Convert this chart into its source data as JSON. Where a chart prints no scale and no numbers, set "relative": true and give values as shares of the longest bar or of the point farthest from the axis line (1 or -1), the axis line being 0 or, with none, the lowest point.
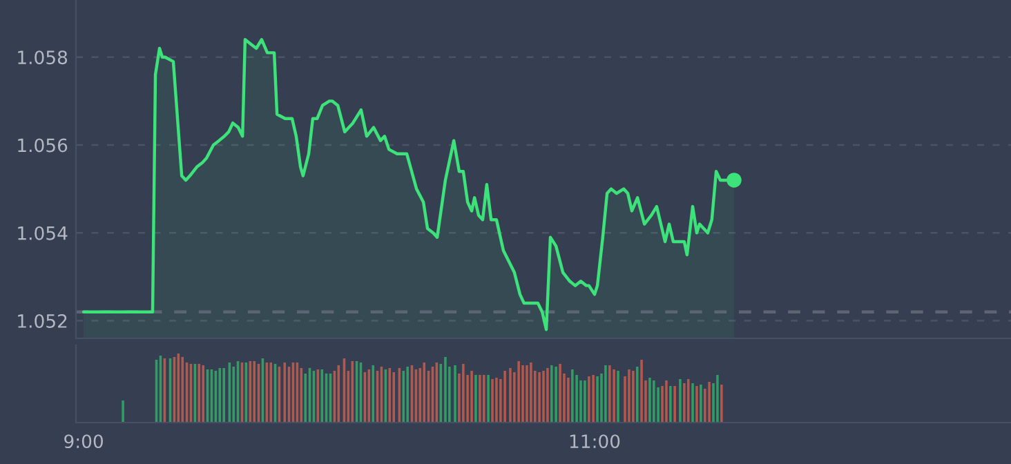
{
  "chart_data": [
    {
      "type": "area",
      "xlim": [
        8.97,
        12.63
      ],
      "ylim": [
        1.0516,
        1.0593
      ],
      "yticks": [
        1.052,
        1.054,
        1.056,
        1.058
      ],
      "grid": "y",
      "tick_labels": "y",
      "ref_lines": [
        {
          "axis": "y",
          "value": 1.0522,
          "color": "#5d6574",
          "line_style": "dashed"
        }
      ],
      "series": [
        {
          "type": "area",
          "color": "#3ee27a",
          "x": [
            9.0,
            9.27,
            9.281,
            9.297,
            9.308,
            9.319,
            9.351,
            9.384,
            9.4,
            9.416,
            9.443,
            9.465,
            9.481,
            9.508,
            9.53,
            9.551,
            9.568,
            9.584,
            9.605,
            9.622,
            9.632,
            9.654,
            9.676,
            9.697,
            9.719,
            9.746,
            9.757,
            9.789,
            9.816,
            9.832,
            9.849,
            9.859,
            9.881,
            9.897,
            9.914,
            9.935,
            9.962,
            9.973,
            9.995,
            10.022,
            10.054,
            10.086,
            10.108,
            10.135,
            10.162,
            10.178,
            10.195,
            10.227,
            10.265,
            10.303,
            10.33,
            10.346,
            10.368,
            10.384,
            10.416,
            10.449,
            10.47,
            10.486,
            10.503,
            10.519,
            10.53,
            10.546,
            10.562,
            10.578,
            10.595,
            10.616,
            10.643,
            10.686,
            10.708,
            10.724,
            10.762,
            10.778,
            10.795,
            10.811,
            10.827,
            10.849,
            10.876,
            10.903,
            10.924,
            10.946,
            10.968,
            10.978,
            11.0,
            11.011,
            11.032,
            11.049,
            11.065,
            11.086,
            11.114,
            11.13,
            11.146,
            11.168,
            11.195,
            11.222,
            11.243,
            11.276,
            11.292,
            11.308,
            11.33,
            11.351,
            11.362,
            11.384,
            11.4,
            11.411,
            11.443,
            11.459,
            11.476,
            11.492,
            11.546
          ],
          "values": [
            1.0522,
            1.0522,
            1.0576,
            1.0582,
            1.058,
            1.058,
            1.0579,
            1.0553,
            1.0552,
            1.0553,
            1.0555,
            1.0556,
            1.0557,
            1.056,
            1.0561,
            1.0562,
            1.0563,
            1.0565,
            1.0564,
            1.0562,
            1.0584,
            1.0583,
            1.0582,
            1.0584,
            1.0581,
            1.0581,
            1.0567,
            1.0566,
            1.0566,
            1.0562,
            1.0555,
            1.0553,
            1.0558,
            1.0566,
            1.0566,
            1.0569,
            1.057,
            1.057,
            1.0569,
            1.0563,
            1.0565,
            1.0568,
            1.0562,
            1.0564,
            1.0561,
            1.0562,
            1.0559,
            1.0558,
            1.0558,
            1.055,
            1.0547,
            1.0541,
            1.054,
            1.0539,
            1.0552,
            1.0561,
            1.0554,
            1.0554,
            1.0547,
            1.0545,
            1.0548,
            1.0544,
            1.0543,
            1.0551,
            1.0543,
            1.0543,
            1.0536,
            1.0531,
            1.0526,
            1.0524,
            1.0524,
            1.0524,
            1.0522,
            1.0518,
            1.0539,
            1.0537,
            1.0531,
            1.0529,
            1.0528,
            1.0529,
            1.0528,
            1.0528,
            1.0526,
            1.0528,
            1.0539,
            1.0549,
            1.055,
            1.0549,
            1.055,
            1.0549,
            1.0545,
            1.0548,
            1.0542,
            1.0544,
            1.0546,
            1.0538,
            1.0542,
            1.0538,
            1.0538,
            1.0538,
            1.0535,
            1.0546,
            1.054,
            1.0542,
            1.054,
            1.0543,
            1.0554,
            1.0552,
            1.0552
          ]
        },
        {
          "type": "scatter",
          "color": "#3ee27a",
          "marker": "circle",
          "x": [
            11.546
          ],
          "values": [
            1.0552
          ]
        }
      ]
    },
    {
      "type": "bar",
      "relative": true,
      "xlim": [
        8.97,
        12.63
      ],
      "xticks": [
        {
          "value": 9,
          "label": "9:00"
        },
        {
          "value": 11,
          "label": "11:00"
        }
      ],
      "tick_labels": "x",
      "x": [
        9.154,
        9.285,
        9.301,
        9.317,
        9.339,
        9.355,
        9.371,
        9.387,
        9.404,
        9.42,
        9.436,
        9.452,
        9.468,
        9.485,
        9.501,
        9.517,
        9.533,
        9.549,
        9.571,
        9.587,
        9.604,
        9.62,
        9.636,
        9.652,
        9.668,
        9.685,
        9.701,
        9.717,
        9.733,
        9.75,
        9.766,
        9.787,
        9.804,
        9.82,
        9.836,
        9.852,
        9.868,
        9.885,
        9.901,
        9.917,
        9.933,
        9.95,
        9.966,
        9.982,
        9.998,
        10.02,
        10.036,
        10.052,
        10.069,
        10.085,
        10.101,
        10.117,
        10.133,
        10.15,
        10.166,
        10.182,
        10.198,
        10.214,
        10.236,
        10.252,
        10.268,
        10.285,
        10.301,
        10.317,
        10.333,
        10.35,
        10.366,
        10.382,
        10.398,
        10.416,
        10.432,
        10.454,
        10.47,
        10.486,
        10.503,
        10.519,
        10.535,
        10.551,
        10.567,
        10.584,
        10.6,
        10.616,
        10.632,
        10.649,
        10.67,
        10.686,
        10.703,
        10.719,
        10.735,
        10.751,
        10.767,
        10.784,
        10.8,
        10.816,
        10.832,
        10.849,
        10.865,
        10.881,
        10.897,
        10.913,
        10.93,
        10.946,
        10.962,
        10.978,
        10.995,
        11.011,
        11.027,
        11.043,
        11.059,
        11.076,
        11.092,
        11.119,
        11.135,
        11.151,
        11.167,
        11.184,
        11.2,
        11.216,
        11.232,
        11.249,
        11.265,
        11.281,
        11.297,
        11.314,
        11.335,
        11.351,
        11.367,
        11.384,
        11.4,
        11.416,
        11.432,
        11.449,
        11.465,
        11.481,
        11.497
      ],
      "values": [
        0.32,
        0.91,
        0.97,
        0.93,
        0.93,
        0.95,
        1.0,
        0.95,
        0.87,
        0.85,
        0.85,
        0.85,
        0.83,
        0.77,
        0.77,
        0.75,
        0.79,
        0.79,
        0.87,
        0.81,
        0.89,
        0.87,
        0.87,
        0.89,
        0.89,
        0.85,
        0.93,
        0.87,
        0.87,
        0.85,
        0.81,
        0.87,
        0.81,
        0.87,
        0.87,
        0.79,
        0.71,
        0.79,
        0.75,
        0.77,
        0.77,
        0.71,
        0.71,
        0.75,
        0.83,
        0.93,
        0.75,
        0.89,
        0.89,
        0.87,
        0.73,
        0.77,
        0.83,
        0.75,
        0.81,
        0.77,
        0.79,
        0.73,
        0.79,
        0.75,
        0.81,
        0.83,
        0.77,
        0.79,
        0.87,
        0.75,
        0.81,
        0.87,
        0.85,
        0.95,
        0.81,
        0.83,
        0.71,
        0.85,
        0.69,
        0.75,
        0.69,
        0.69,
        0.69,
        0.69,
        0.63,
        0.65,
        0.63,
        0.75,
        0.79,
        0.73,
        0.89,
        0.83,
        0.83,
        0.87,
        0.75,
        0.73,
        0.75,
        0.79,
        0.83,
        0.81,
        0.85,
        0.71,
        0.65,
        0.77,
        0.69,
        0.61,
        0.61,
        0.67,
        0.69,
        0.67,
        0.71,
        0.83,
        0.83,
        0.77,
        0.75,
        0.67,
        0.77,
        0.75,
        0.81,
        0.91,
        0.61,
        0.65,
        0.61,
        0.51,
        0.53,
        0.61,
        0.53,
        0.53,
        0.63,
        0.57,
        0.63,
        0.57,
        0.53,
        0.55,
        0.49,
        0.59,
        0.57,
        0.69,
        0.55
      ],
      "colors": [
        "#2f9e63",
        "#2f9e63",
        "#2f9e63",
        "#b5574a",
        "#2f9e63",
        "#b5574a",
        "#b5574a",
        "#b5574a",
        "#b5574a",
        "#b5574a",
        "#2f9e63",
        "#b5574a",
        "#b5574a",
        "#2f9e63",
        "#2f9e63",
        "#2f9e63",
        "#2f9e63",
        "#2f9e63",
        "#2f9e63",
        "#2f9e63",
        "#2f9e63",
        "#b5574a",
        "#2f9e63",
        "#b5574a",
        "#b5574a",
        "#b5574a",
        "#2f9e63",
        "#b5574a",
        "#b5574a",
        "#2f9e63",
        "#b5574a",
        "#b5574a",
        "#b5574a",
        "#b5574a",
        "#b5574a",
        "#b5574a",
        "#2f9e63",
        "#2f9e63",
        "#2f9e63",
        "#b5574a",
        "#2f9e63",
        "#2f9e63",
        "#2f9e63",
        "#b5574a",
        "#b5574a",
        "#b5574a",
        "#b5574a",
        "#b5574a",
        "#2f9e63",
        "#2f9e63",
        "#b5574a",
        "#b5574a",
        "#2f9e63",
        "#b5574a",
        "#b5574a",
        "#2f9e63",
        "#b5574a",
        "#b5574a",
        "#b5574a",
        "#2f9e63",
        "#2f9e63",
        "#b5574a",
        "#b5574a",
        "#b5574a",
        "#b5574a",
        "#b5574a",
        "#b5574a",
        "#b5574a",
        "#2f9e63",
        "#2f9e63",
        "#2f9e63",
        "#2f9e63",
        "#b5574a",
        "#b5574a",
        "#b5574a",
        "#b5574a",
        "#2f9e63",
        "#b5574a",
        "#b5574a",
        "#2f9e63",
        "#b5574a",
        "#b5574a",
        "#b5574a",
        "#b5574a",
        "#b5574a",
        "#b5574a",
        "#b5574a",
        "#b5574a",
        "#b5574a",
        "#b5574a",
        "#b5574a",
        "#b5574a",
        "#b5574a",
        "#b5574a",
        "#2f9e63",
        "#2f9e63",
        "#b5574a",
        "#b5574a",
        "#b5574a",
        "#2f9e63",
        "#2f9e63",
        "#2f9e63",
        "#2f9e63",
        "#b5574a",
        "#b5574a",
        "#2f9e63",
        "#2f9e63",
        "#2f9e63",
        "#b5574a",
        "#b5574a",
        "#2f9e63",
        "#b5574a",
        "#b5574a",
        "#b5574a",
        "#2f9e63",
        "#b5574a",
        "#b5574a",
        "#2f9e63",
        "#2f9e63",
        "#2f9e63",
        "#b5574a",
        "#b5574a",
        "#2f9e63",
        "#b5574a",
        "#2f9e63",
        "#b5574a",
        "#b5574a",
        "#2f9e63",
        "#b5574a",
        "#2f9e63",
        "#b5574a",
        "#b5574a",
        "#2f9e63",
        "#2f9e63",
        "#b5574a"
      ]
    }
  ]
}
